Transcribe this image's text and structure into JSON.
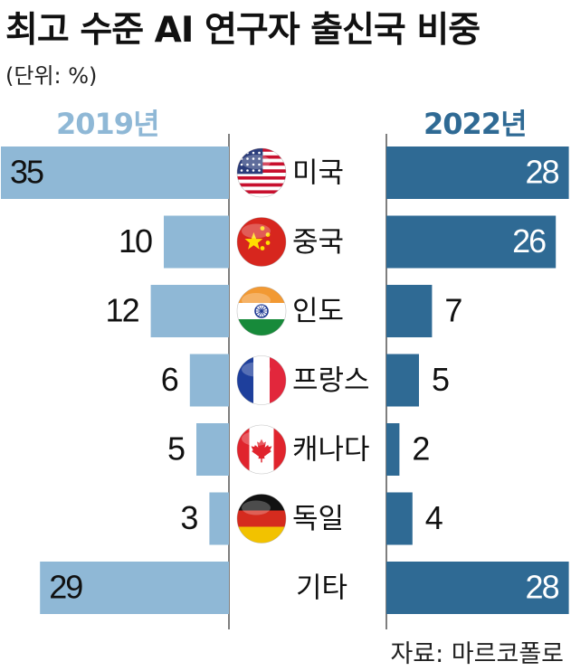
{
  "title": "최고 수준 AI 연구자 출신국 비중",
  "unit": "(단위: %)",
  "source": "자료: 마르코폴로",
  "colors": {
    "left_bar": "#8fb8d6",
    "right_bar": "#2f6a94",
    "axis": "#555555"
  },
  "chart_data": {
    "type": "bar",
    "orientation": "horizontal-butterfly",
    "title": "최고 수준 AI 연구자 출신국 비중",
    "unit": "%",
    "categories": [
      "미국",
      "중국",
      "인도",
      "프랑스",
      "캐나다",
      "독일",
      "기타"
    ],
    "flags": [
      "usa-flag-icon",
      "china-flag-icon",
      "india-flag-icon",
      "france-flag-icon",
      "canada-flag-icon",
      "germany-flag-icon",
      ""
    ],
    "series": [
      {
        "name": "2019년",
        "values": [
          35,
          10,
          12,
          6,
          5,
          3,
          29
        ],
        "color": "#8fb8d6"
      },
      {
        "name": "2022년",
        "values": [
          28,
          26,
          7,
          5,
          2,
          4,
          28
        ],
        "color": "#2f6a94"
      }
    ]
  }
}
